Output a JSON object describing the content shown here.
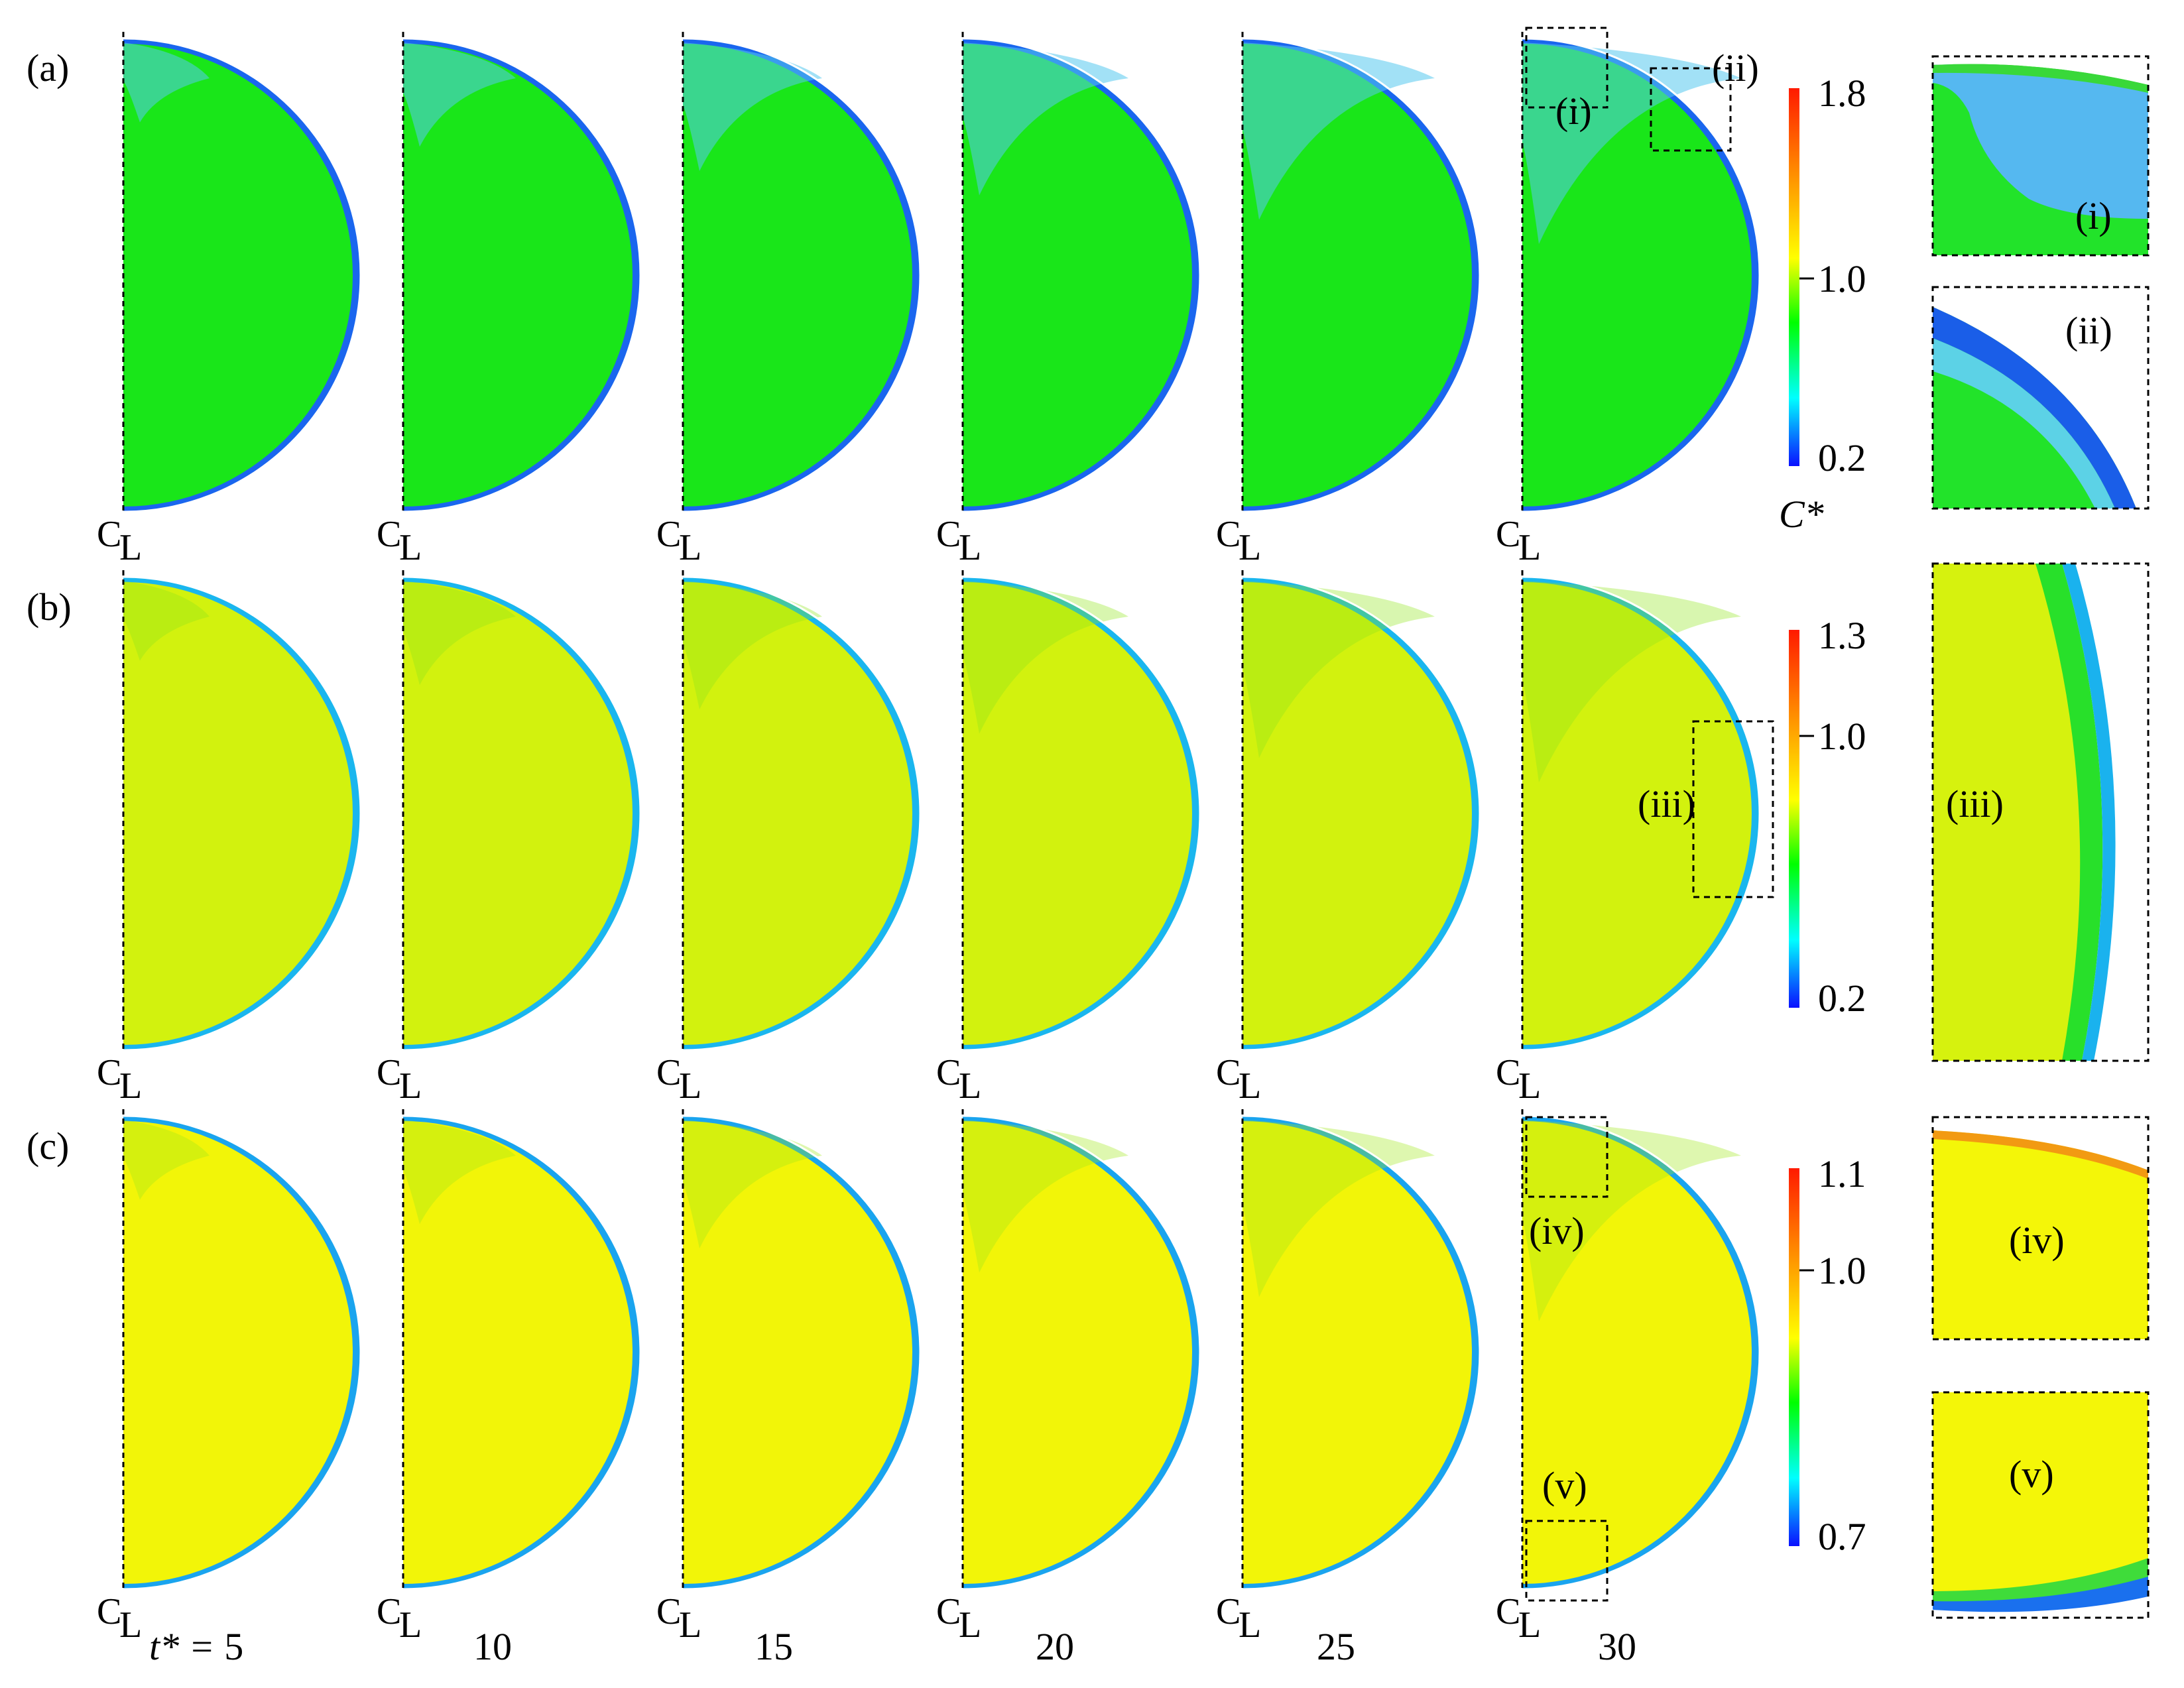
{
  "rows": [
    {
      "label": "(a)",
      "fill": "#19e619",
      "edge": "#1a66ee",
      "inner": "#55c8ee",
      "colorbar": {
        "max": "1.8",
        "mid": "1.0",
        "min": "0.2",
        "title": "C*"
      },
      "zooms": [
        {
          "label": "(i)",
          "panel": "(i)"
        },
        {
          "label": "(ii)",
          "panel": "(ii)"
        }
      ]
    },
    {
      "label": "(b)",
      "fill": "#d2f20e",
      "edge": "#1ab6ee",
      "inner": "#8ee61a",
      "colorbar": {
        "max": "1.3",
        "mid": "1.0",
        "min": "0.2",
        "title": ""
      },
      "zooms": [
        {
          "label": "(iii)",
          "panel": "(iii)"
        }
      ]
    },
    {
      "label": "(c)",
      "fill": "#f2f508",
      "edge": "#1aa4ee",
      "inner": "#a0e81a",
      "colorbar": {
        "max": "1.1",
        "mid": "1.0",
        "min": "0.7",
        "title": ""
      },
      "zooms": [
        {
          "label": "(iv)",
          "panel": "(iv)"
        },
        {
          "label": "(v)",
          "panel": "(v)"
        }
      ]
    }
  ],
  "centerline_label": {
    "c": "C",
    "l": "L"
  },
  "time_prefix": "t* = ",
  "times": [
    "5",
    "10",
    "15",
    "20",
    "25",
    "30"
  ],
  "colorbar_colors": [
    "#ff1a00",
    "#ff9a00",
    "#ffff00",
    "#00ff00",
    "#00ffff",
    "#0a10ff"
  ]
}
